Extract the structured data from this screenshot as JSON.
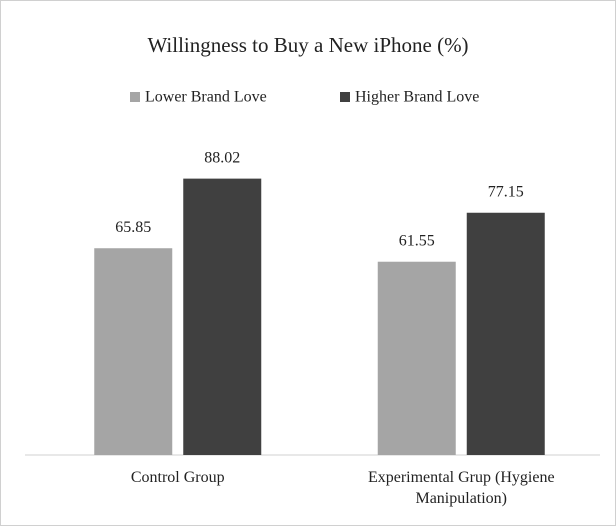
{
  "chart_data": {
    "type": "bar",
    "title": "Willingness to Buy a New iPhone (%)",
    "categories": [
      "Control Group",
      "Experimental Grup (Hygiene Manipulation)"
    ],
    "series": [
      {
        "name": "Lower Brand Love",
        "color": "#a5a5a5",
        "values": [
          65.85,
          61.55
        ]
      },
      {
        "name": "Higher Brand Love",
        "color": "#404040",
        "values": [
          88.02,
          77.15
        ]
      }
    ],
    "ylim": [
      0,
      100
    ],
    "grid": false,
    "legend": "top"
  }
}
